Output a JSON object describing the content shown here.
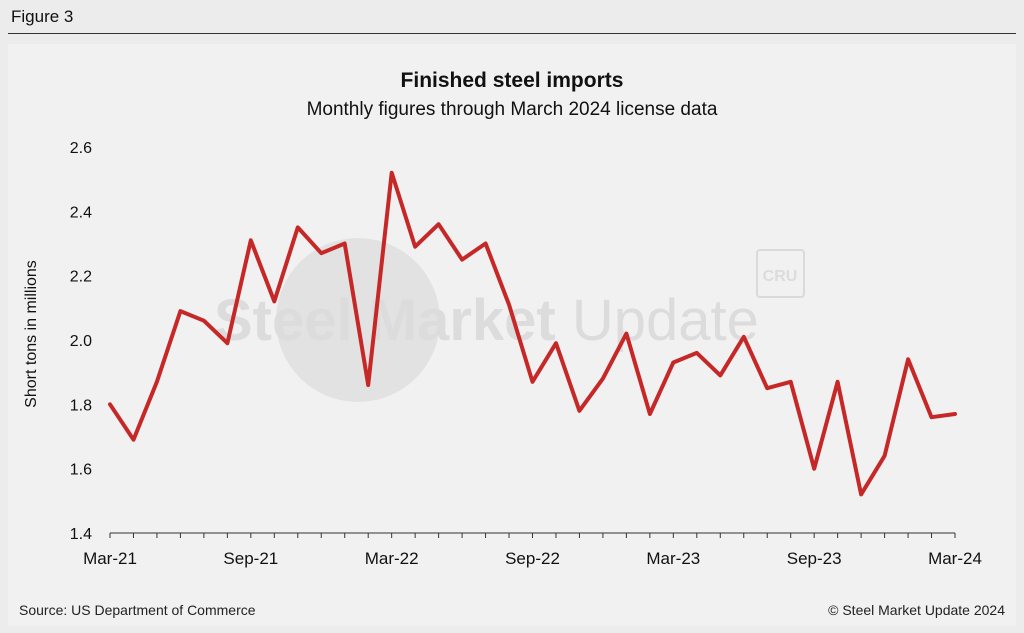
{
  "figure_label": "Figure 3",
  "source": "Source: US Department of Commerce",
  "copyright": "© Steel Market Update 2024",
  "watermark": {
    "text_bold": "Steel Market",
    "text_light": " Update",
    "badge": "CRU"
  },
  "colors": {
    "line": "#c62828",
    "axis": "#333333",
    "background": "#ececec",
    "panel": "#f1f1f1"
  },
  "chart_data": {
    "type": "line",
    "title": "Finished steel imports",
    "subtitle": "Monthly figures through March 2024 license data",
    "ylabel": "Short tons in millions",
    "xlabel": "",
    "ylim": [
      1.4,
      2.6
    ],
    "yticks": [
      "1.4",
      "1.6",
      "1.8",
      "2.0",
      "2.2",
      "2.4",
      "2.6"
    ],
    "xtick_labels": [
      "Mar-21",
      "Sep-21",
      "Mar-22",
      "Sep-22",
      "Mar-23",
      "Sep-23",
      "Mar-24"
    ],
    "xtick_indices": [
      0,
      6,
      12,
      18,
      24,
      30,
      36
    ],
    "grid": false,
    "series": [
      {
        "name": "Finished steel imports",
        "categories": [
          "Mar-21",
          "Apr-21",
          "May-21",
          "Jun-21",
          "Jul-21",
          "Aug-21",
          "Sep-21",
          "Oct-21",
          "Nov-21",
          "Dec-21",
          "Jan-22",
          "Feb-22",
          "Mar-22",
          "Apr-22",
          "May-22",
          "Jun-22",
          "Jul-22",
          "Aug-22",
          "Sep-22",
          "Oct-22",
          "Nov-22",
          "Dec-22",
          "Jan-23",
          "Feb-23",
          "Mar-23",
          "Apr-23",
          "May-23",
          "Jun-23",
          "Jul-23",
          "Aug-23",
          "Sep-23",
          "Oct-23",
          "Nov-23",
          "Dec-23",
          "Jan-24",
          "Feb-24",
          "Mar-24"
        ],
        "values": [
          1.8,
          1.69,
          1.87,
          2.09,
          2.06,
          1.99,
          2.31,
          2.12,
          2.35,
          2.27,
          2.3,
          1.86,
          2.52,
          2.29,
          2.36,
          2.25,
          2.3,
          2.11,
          1.87,
          1.99,
          1.78,
          1.88,
          2.02,
          1.77,
          1.93,
          1.96,
          1.89,
          2.01,
          1.85,
          1.87,
          1.6,
          1.87,
          1.52,
          1.64,
          1.94,
          1.76,
          1.77
        ]
      }
    ]
  }
}
